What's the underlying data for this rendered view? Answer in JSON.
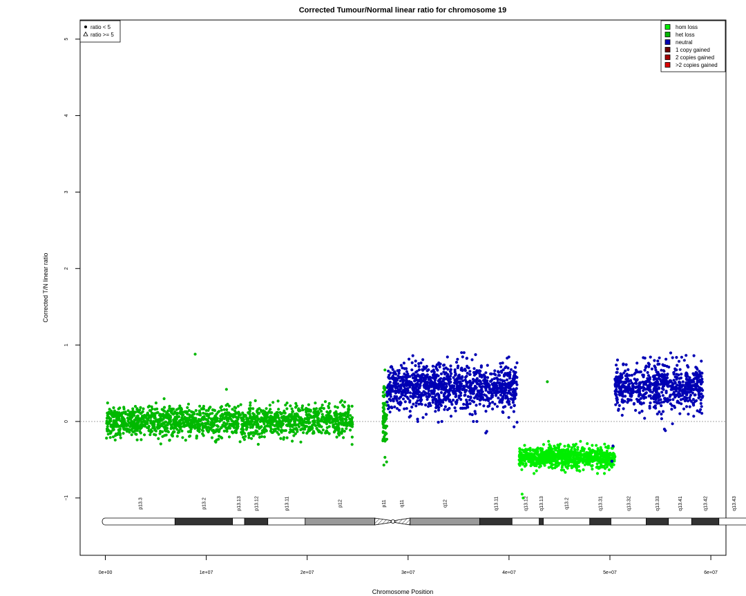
{
  "chart_data": {
    "type": "scatter",
    "title": "Corrected Tumour/Normal linear ratio for chromosome  19",
    "xlabel": "Chromosome Position",
    "ylabel": "Corrected T/N linear ratio",
    "xlim": [
      -2500000,
      61500000
    ],
    "ylim": [
      -1.75,
      5.25
    ],
    "x_ticks": [
      0,
      10000000,
      20000000,
      30000000,
      40000000,
      50000000,
      60000000
    ],
    "x_tick_labels": [
      "0e+00",
      "1e+07",
      "2e+07",
      "3e+07",
      "4e+07",
      "5e+07",
      "6e+07"
    ],
    "y_ticks": [
      -1,
      0,
      1,
      2,
      3,
      4,
      5
    ],
    "y_tick_labels": [
      "−1",
      "0",
      "1",
      "2",
      "3",
      "4",
      "5"
    ],
    "baseline": 0,
    "grid": false,
    "shape_legend": {
      "placement": "top-left",
      "items": [
        {
          "symbol": "dot",
          "label": "ratio < 5"
        },
        {
          "symbol": "triangle",
          "label": "ratio >= 5"
        }
      ]
    },
    "legend": {
      "placement": "top-right",
      "items": [
        {
          "label": "hom loss",
          "color": "#00ee00"
        },
        {
          "label": "het loss",
          "color": "#00b800"
        },
        {
          "label": "neutral",
          "color": "#0000b4"
        },
        {
          "label": "1 copy gained",
          "color": "#6b0000"
        },
        {
          "label": "2 copies gained",
          "color": "#a40000"
        },
        {
          "label": ">2 copies gained",
          "color": "#dd0000"
        }
      ]
    },
    "segments": [
      {
        "state": "het loss",
        "x_range": [
          100000,
          24500000
        ],
        "mean": 0.0,
        "spread": 0.1,
        "approx_points": 1600
      },
      {
        "state": "het loss",
        "x_range": [
          27500000,
          27900000
        ],
        "mean": 0.05,
        "spread": 0.25,
        "approx_points": 60
      },
      {
        "state": "neutral",
        "x_range": [
          27900000,
          40800000
        ],
        "mean": 0.45,
        "spread": 0.15,
        "approx_points": 1100
      },
      {
        "state": "hom loss",
        "x_range": [
          41000000,
          50500000
        ],
        "mean": -0.47,
        "spread": 0.07,
        "approx_points": 900
      },
      {
        "state": "neutral",
        "x_range": [
          50500000,
          59200000
        ],
        "mean": 0.45,
        "spread": 0.15,
        "approx_points": 700
      }
    ],
    "outliers": [
      {
        "x": 8900000,
        "y": 0.88,
        "state": "het loss"
      },
      {
        "x": 12000000,
        "y": 0.42,
        "state": "het loss"
      },
      {
        "x": 43800000,
        "y": 0.52,
        "state": "het loss"
      },
      {
        "x": 41300000,
        "y": -0.95,
        "state": "hom loss"
      },
      {
        "x": 41400000,
        "y": -1.0,
        "state": "hom loss"
      },
      {
        "x": 27600000,
        "y": -0.57,
        "state": "het loss"
      },
      {
        "x": 37700000,
        "y": -0.15,
        "state": "neutral"
      },
      {
        "x": 37800000,
        "y": -0.13,
        "state": "neutral"
      },
      {
        "x": 55400000,
        "y": -0.1,
        "state": "neutral"
      },
      {
        "x": 55500000,
        "y": -0.12,
        "state": "neutral"
      },
      {
        "x": 50200000,
        "y": -0.52,
        "state": "neutral"
      },
      {
        "x": 50300000,
        "y": -0.32,
        "state": "neutral"
      },
      {
        "x": 40500000,
        "y": -0.07,
        "state": "neutral"
      },
      {
        "x": 40800000,
        "y": -0.01,
        "state": "neutral"
      },
      {
        "x": 33000000,
        "y": -0.01,
        "state": "neutral"
      },
      {
        "x": 56200000,
        "y": -0.03,
        "state": "neutral"
      }
    ],
    "ideogram": {
      "bands": [
        {
          "name": "p13.3",
          "start": 0,
          "end": 6900000,
          "stain": "gneg"
        },
        {
          "name": "p13.2",
          "start": 6900000,
          "end": 12600000,
          "stain": "gpos75"
        },
        {
          "name": "p13.13",
          "start": 12600000,
          "end": 13800000,
          "stain": "gneg"
        },
        {
          "name": "p13.12",
          "start": 13800000,
          "end": 16100000,
          "stain": "gpos75"
        },
        {
          "name": "p13.11",
          "start": 16100000,
          "end": 19800000,
          "stain": "gneg"
        },
        {
          "name": "p12",
          "start": 19800000,
          "end": 26700000,
          "stain": "gpos50"
        },
        {
          "name": "p11",
          "start": 26700000,
          "end": 28500000,
          "stain": "acen"
        },
        {
          "name": "q11",
          "start": 28500000,
          "end": 30200000,
          "stain": "acen"
        },
        {
          "name": "q12",
          "start": 30200000,
          "end": 37100000,
          "stain": "gpos50"
        },
        {
          "name": "q13.11",
          "start": 37100000,
          "end": 40300000,
          "stain": "gpos75"
        },
        {
          "name": "q13.12",
          "start": 40300000,
          "end": 43000000,
          "stain": "gneg"
        },
        {
          "name": "q13.13",
          "start": 43000000,
          "end": 43400000,
          "stain": "gpos75"
        },
        {
          "name": "q13.2",
          "start": 43400000,
          "end": 48000000,
          "stain": "gneg"
        },
        {
          "name": "q13.31",
          "start": 48000000,
          "end": 50100000,
          "stain": "gpos75"
        },
        {
          "name": "q13.32",
          "start": 50100000,
          "end": 53600000,
          "stain": "gneg"
        },
        {
          "name": "q13.33",
          "start": 53600000,
          "end": 55800000,
          "stain": "gpos75"
        },
        {
          "name": "q13.41",
          "start": 55800000,
          "end": 58100000,
          "stain": "gneg"
        },
        {
          "name": "q13.42",
          "start": 58100000,
          "end": 60800000,
          "stain": "gpos75"
        },
        {
          "name": "q13.43",
          "start": 60800000,
          "end": 63800000,
          "stain": "gneg"
        }
      ]
    }
  }
}
